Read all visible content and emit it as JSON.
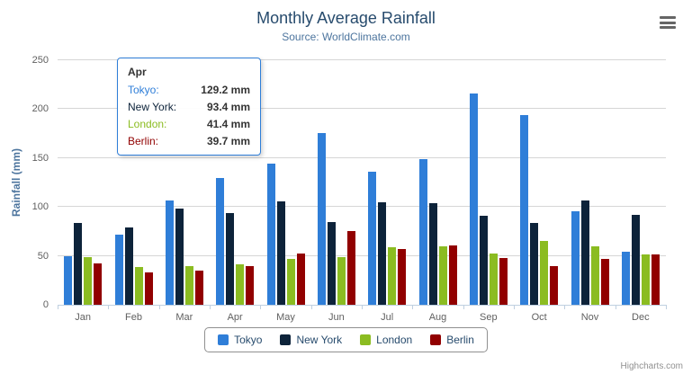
{
  "chart_data": {
    "type": "bar",
    "title": "Monthly Average Rainfall",
    "subtitle": "Source: WorldClimate.com",
    "categories": [
      "Jan",
      "Feb",
      "Mar",
      "Apr",
      "May",
      "Jun",
      "Jul",
      "Aug",
      "Sep",
      "Oct",
      "Nov",
      "Dec"
    ],
    "series": [
      {
        "name": "Tokyo",
        "color": "#2f7ed8",
        "values": [
          49.9,
          71.5,
          106.4,
          129.2,
          144.0,
          176.0,
          135.6,
          148.5,
          216.4,
          194.1,
          95.6,
          54.4
        ]
      },
      {
        "name": "New York",
        "color": "#0d233a",
        "values": [
          83.6,
          78.8,
          98.5,
          93.4,
          106.0,
          84.5,
          105.0,
          104.3,
          91.2,
          83.5,
          106.6,
          92.3
        ]
      },
      {
        "name": "London",
        "color": "#8bbc21",
        "values": [
          48.9,
          38.8,
          39.3,
          41.4,
          47.0,
          48.3,
          59.0,
          59.6,
          52.4,
          65.2,
          59.3,
          51.2
        ]
      },
      {
        "name": "Berlin",
        "color": "#910000",
        "values": [
          42.4,
          33.2,
          34.5,
          39.7,
          52.6,
          75.5,
          57.4,
          60.4,
          47.6,
          39.1,
          46.8,
          51.1
        ]
      }
    ],
    "xlabel": "",
    "ylabel": "Rainfall (mm)",
    "ylim": [
      0,
      250
    ],
    "yticks": [
      0,
      50,
      100,
      150,
      200,
      250
    ],
    "grid": true,
    "legend_position": "bottom",
    "value_suffix": "mm"
  },
  "tooltip": {
    "category": "Apr",
    "rows": [
      {
        "name": "Tokyo",
        "value": "129.2 mm",
        "color": "#2f7ed8"
      },
      {
        "name": "New York",
        "value": "93.4 mm",
        "color": "#0d233a"
      },
      {
        "name": "London",
        "value": "41.4 mm",
        "color": "#8bbc21"
      },
      {
        "name": "Berlin",
        "value": "39.7 mm",
        "color": "#910000"
      }
    ]
  },
  "icons": {
    "menu": "hamburger-menu-icon"
  },
  "credit": {
    "label": "Highcharts.com"
  },
  "colors": {
    "title": "#274b6d",
    "subtitle": "#4d759e",
    "axis_label": "#606060",
    "axis_line": "#c0d0e0",
    "gridline": "#d6d6d6",
    "tooltip_border": "#2f7ed8",
    "legend_border": "#909090"
  }
}
